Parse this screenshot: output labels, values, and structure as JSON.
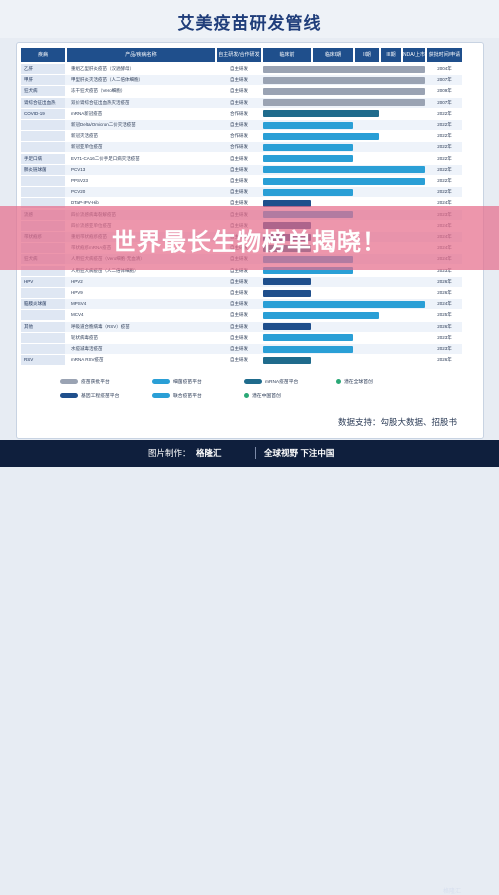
{
  "title": "艾美疫苗研发管线",
  "overlay_caption": "世界最长生物榜单揭晓！",
  "columns": [
    "疾病",
    "产品/疾病名称",
    "自主研发/合作研发",
    "临床前",
    "临床I期",
    "II期",
    "III期",
    "NDA/上市",
    "获批时间/申请上市时间"
  ],
  "colors": {
    "launched": "#9aa3b3",
    "clinical": "#2a9fd6",
    "platform": "#1f4f8c",
    "mrna": "#1f6b8c",
    "star": "#2aa876",
    "overlay": "#e66e8c"
  },
  "chart_data": {
    "type": "table",
    "rows": [
      {
        "category": "乙肝",
        "product": "重组乙型肝炎疫苗（汉逊酵母）",
        "source": "自主研发",
        "stage": 5,
        "status": "launched",
        "year": "2004年"
      },
      {
        "category": "甲肝",
        "product": "甲型肝炎灭活疫苗（人二倍体细胞）",
        "source": "自主研发",
        "stage": 5,
        "status": "launched",
        "year": "2007年"
      },
      {
        "category": "狂犬病",
        "product": "冻干狂犬疫苗（Vero细胞）",
        "source": "自主研发",
        "stage": 5,
        "status": "launched",
        "year": "2009年"
      },
      {
        "category": "肾综合征出血热",
        "product": "双价肾综合征出血热灭活疫苗",
        "source": "自主研发",
        "stage": 5,
        "status": "launched",
        "year": "2007年"
      },
      {
        "category": "COVID-19",
        "product": "mRNA新冠疫苗",
        "source": "合作研发",
        "stage": 2,
        "status": "mrna",
        "year": "2022年"
      },
      {
        "category": "",
        "product": "新冠Delta/Omicron二价灭活疫苗",
        "source": "自主研发",
        "stage": 1,
        "status": "clinical",
        "year": "2022年"
      },
      {
        "category": "",
        "product": "新冠灭活疫苗",
        "source": "合作研发",
        "stage": 2,
        "status": "clinical",
        "year": "2022年"
      },
      {
        "category": "",
        "product": "新冠亚单位疫苗",
        "source": "合作研发",
        "stage": 1,
        "status": "clinical",
        "year": "2022年"
      },
      {
        "category": "手足口病",
        "product": "EV71-CA16二价手足口病灭活疫苗",
        "source": "自主研发",
        "stage": 1,
        "status": "clinical",
        "year": "2022年"
      },
      {
        "category": "肺炎链球菌",
        "product": "PCV13",
        "source": "自主研发",
        "stage": 4,
        "status": "clinical",
        "year": "2022年"
      },
      {
        "category": "",
        "product": "PPSV23",
        "source": "自主研发",
        "stage": 4,
        "status": "clinical",
        "year": "2022年"
      },
      {
        "category": "",
        "product": "PCV20",
        "source": "自主研发",
        "stage": 1,
        "status": "clinical",
        "year": "2022年"
      },
      {
        "category": "",
        "product": "DTaP-IPV-Hib",
        "source": "自主研发",
        "stage": 0,
        "status": "platform",
        "year": "2024年"
      },
      {
        "category": "流感",
        "product": "四价流感病毒裂解疫苗",
        "source": "自主研发",
        "stage": 1,
        "status": "clinical",
        "year": "2023年"
      },
      {
        "category": "",
        "product": "四价流感亚单位疫苗",
        "source": "自主研发",
        "stage": 0,
        "status": "platform",
        "year": "2024年"
      },
      {
        "category": "带状疱疹",
        "product": "重组带状疱疹疫苗",
        "source": "自主研发",
        "stage": 0,
        "status": "platform",
        "year": "2024年"
      },
      {
        "category": "",
        "product": "带状疱疹mRNA疫苗",
        "source": "自主研发",
        "stage": 0,
        "status": "mrna",
        "year": "2024年"
      },
      {
        "category": "狂犬病",
        "product": "人用狂犬病疫苗（Vero细胞·无血清）",
        "source": "自主研发",
        "stage": 1,
        "status": "clinical",
        "year": "2024年"
      },
      {
        "category": "",
        "product": "人用狂犬病疫苗（人二倍体细胞）",
        "source": "自主研发",
        "stage": 1,
        "status": "clinical",
        "year": "2023年"
      },
      {
        "category": "HPV",
        "product": "HPV2",
        "source": "自主研发",
        "stage": 0,
        "status": "platform",
        "year": "2026年"
      },
      {
        "category": "",
        "product": "HPV9",
        "source": "自主研发",
        "stage": 0,
        "status": "platform",
        "year": "2026年"
      },
      {
        "category": "脑膜炎球菌",
        "product": "MPSV4",
        "source": "自主研发",
        "stage": 4,
        "status": "clinical",
        "year": "2024年"
      },
      {
        "category": "",
        "product": "MCV4",
        "source": "自主研发",
        "stage": 2,
        "status": "clinical",
        "year": "2025年"
      },
      {
        "category": "其他",
        "product": "呼吸道合胞病毒（RSV）疫苗",
        "source": "自主研发",
        "stage": 0,
        "status": "platform",
        "year": "2026年"
      },
      {
        "category": "",
        "product": "轮状病毒疫苗",
        "source": "自主研发",
        "stage": 1,
        "status": "clinical",
        "year": "2023年"
      },
      {
        "category": "",
        "product": "水痘减毒活疫苗",
        "source": "自主研发",
        "stage": 1,
        "status": "clinical",
        "year": "2023年"
      },
      {
        "category": "RSV",
        "product": "mRNA RSV疫苗",
        "source": "自主研发",
        "stage": 0,
        "status": "mrna",
        "year": "2026年"
      }
    ]
  },
  "legend": [
    {
      "label": "疫苗获批平台",
      "kind": "launched"
    },
    {
      "label": "细菌疫苗平台",
      "kind": "clinical"
    },
    {
      "label": "mRNA疫苗平台",
      "kind": "mrna"
    },
    {
      "label": "潜在全球首创",
      "kind": "star"
    },
    {
      "label": "基因工程疫苗平台",
      "kind": "platform"
    },
    {
      "label": "联合疫苗平台",
      "kind": "clinical"
    },
    {
      "label": "潜在中国首创",
      "kind": "star"
    }
  ],
  "source_note": "数据支持：勾股大数据、招股书",
  "footer": {
    "maker_label": "图片制作：",
    "brand": "格隆汇",
    "slogan": "全球视野 下注中国",
    "watermark": "格隆汇"
  }
}
